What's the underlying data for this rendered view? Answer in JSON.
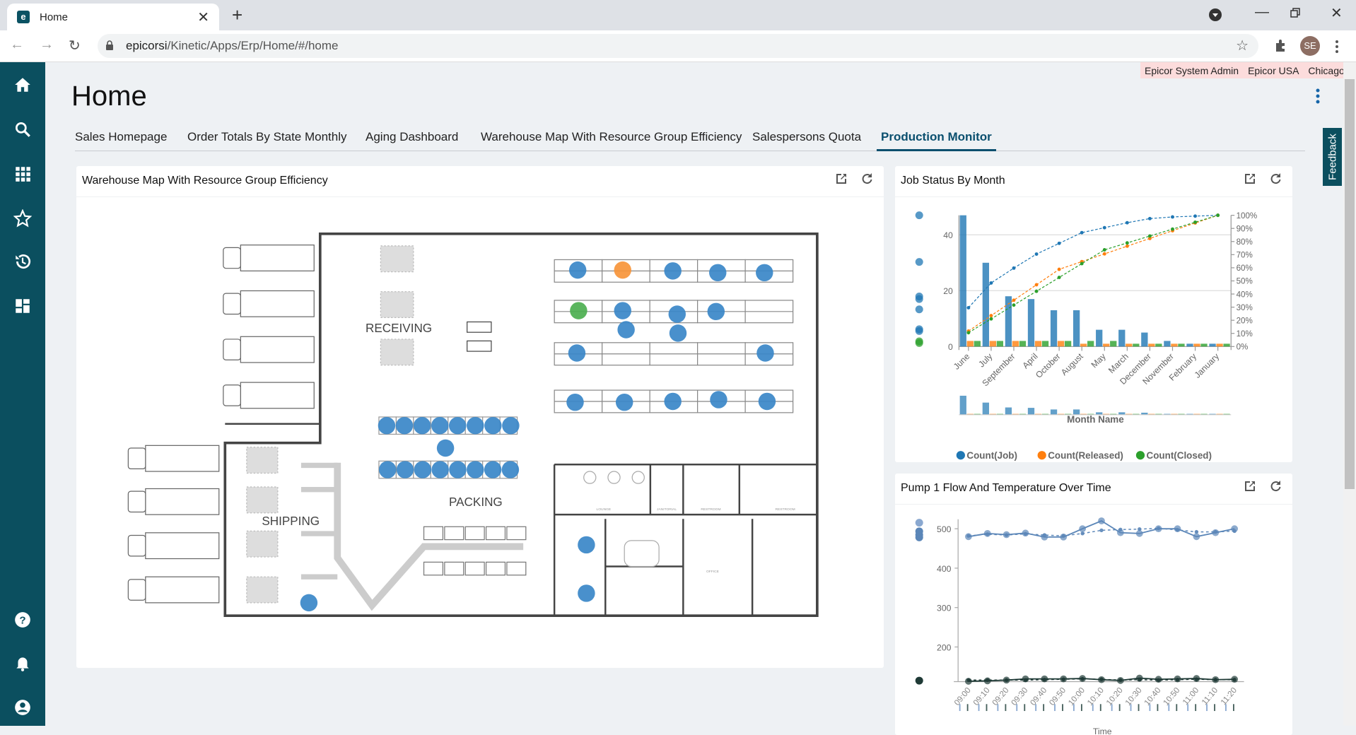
{
  "browser": {
    "tab_title": "Home",
    "url_host": "epicorsi",
    "url_path": "/Kinetic/Apps/Erp/Home/#/home",
    "avatar_initials": "SE"
  },
  "userbar": {
    "user": "Epicor System Admin",
    "company": "Epicor USA",
    "site": "Chicago"
  },
  "page": {
    "title": "Home",
    "feedback_label": "Feedback"
  },
  "sidebar": {
    "items": [
      {
        "icon": "home-icon"
      },
      {
        "icon": "search-icon"
      },
      {
        "icon": "apps-grid-icon"
      },
      {
        "icon": "star-icon"
      },
      {
        "icon": "history-icon"
      },
      {
        "icon": "dashboard-icon"
      },
      {
        "icon": "help-icon"
      },
      {
        "icon": "bell-icon"
      },
      {
        "icon": "user-icon"
      }
    ]
  },
  "tabs": [
    {
      "label": "Sales Homepage"
    },
    {
      "label": "Order Totals By State Monthly"
    },
    {
      "label": "Aging Dashboard"
    },
    {
      "label": "Warehouse Map With Resource Group Efficiency"
    },
    {
      "label": "Salespersons Quota"
    },
    {
      "label": "Production Monitor",
      "active": true
    }
  ],
  "colors": {
    "accent": "#0a4f6e",
    "sidebar": "#0b4f5f",
    "job": "#1f77b4",
    "released": "#ff7f0e",
    "closed": "#2ca02c",
    "flow": "#5b86b8",
    "temp": "#1f3a36"
  },
  "warehouse": {
    "title": "Warehouse Map With Resource Group Efficiency",
    "labels": {
      "receiving": "RECEIVING",
      "packing": "PACKING",
      "shipping": "SHIPPING",
      "lounge": "LOUNGE",
      "janitorial": "JANITORIAL",
      "restroom1": "RESTROOM",
      "restroom2": "RESTROOM",
      "office": "OFFICE"
    }
  },
  "chart_data": [
    {
      "type": "bar",
      "title": "Job Status By Month",
      "xlabel": "Month Name",
      "categories": [
        "June",
        "July",
        "September",
        "April",
        "October",
        "August",
        "May",
        "March",
        "December",
        "November",
        "February",
        "January"
      ],
      "series": [
        {
          "name": "Count(Job)",
          "values": [
            47,
            30,
            18,
            17,
            13,
            13,
            6,
            6,
            5,
            2,
            1,
            1
          ]
        },
        {
          "name": "Count(Released)",
          "values": [
            2,
            2,
            2,
            2,
            2,
            1,
            1,
            1,
            1,
            1,
            1,
            1
          ]
        },
        {
          "name": "Count(Closed)",
          "values": [
            2,
            2,
            2,
            2,
            2,
            2,
            2,
            1,
            1,
            1,
            1,
            1
          ]
        }
      ],
      "overlay": "cumulative percent lines (dashed) per series",
      "ylim": [
        0,
        47
      ],
      "yticks": [
        0,
        20,
        40
      ],
      "y2ticks": [
        "0%",
        "10%",
        "20%",
        "30%",
        "40%",
        "50%",
        "60%",
        "70%",
        "80%",
        "90%",
        "100%"
      ],
      "legend": "bottom",
      "grid": true
    },
    {
      "type": "line",
      "title": "Pump 1 Flow And Temperature Over Time",
      "xlabel": "Time",
      "x": [
        "09:00",
        "09:10",
        "09:20",
        "09:30",
        "09:40",
        "09:50",
        "10:00",
        "10:10",
        "10:20",
        "10:30",
        "10:40",
        "10:50",
        "11:00",
        "11:10",
        "11:20"
      ],
      "series": [
        {
          "values": [
            480,
            488,
            485,
            489,
            479,
            479,
            500,
            520,
            490,
            488,
            500,
            500,
            480,
            490,
            500
          ],
          "style": "solid",
          "color": "#5b86b8"
        },
        {
          "values": [
            482,
            486,
            484,
            487,
            484,
            482,
            488,
            496,
            498,
            499,
            501,
            497,
            492,
            492,
            494
          ],
          "style": "dashed",
          "color": "#5b86b8"
        },
        {
          "values": [
            113,
            114,
            116,
            119,
            119,
            119,
            120,
            117,
            115,
            121,
            118,
            119,
            120,
            117,
            118
          ],
          "style": "solid",
          "color": "#1f3a36"
        },
        {
          "values": [
            116,
            116,
            116,
            116,
            117,
            118,
            119,
            118,
            116,
            117,
            116,
            117,
            118,
            117,
            117
          ],
          "style": "dashed",
          "color": "#1f3a36"
        }
      ],
      "ylim": [
        112,
        530
      ],
      "yticks": [
        200,
        300,
        400,
        500
      ],
      "grid": false
    }
  ]
}
